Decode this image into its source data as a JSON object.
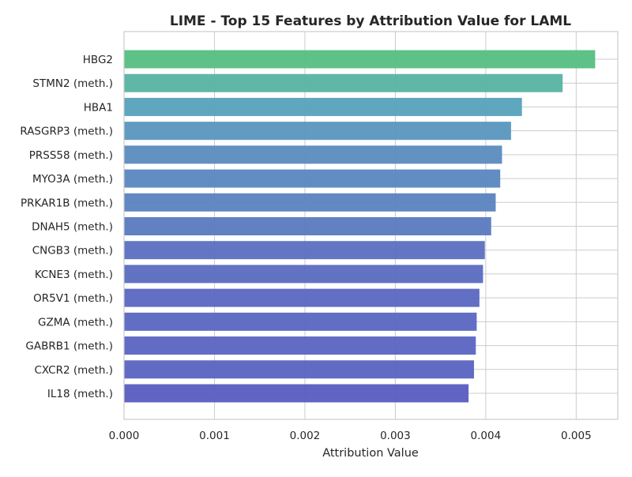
{
  "chart_data": {
    "type": "bar",
    "orientation": "horizontal",
    "title": "LIME - Top 15 Features by Attribution Value for LAML",
    "xlabel": "Attribution Value",
    "ylabel": "",
    "xlim": [
      0,
      0.00546
    ],
    "xticks": [
      0.0,
      0.001,
      0.002,
      0.003,
      0.004,
      0.005
    ],
    "xtick_labels": [
      "0.000",
      "0.001",
      "0.002",
      "0.003",
      "0.004",
      "0.005"
    ],
    "grid": true,
    "categories": [
      "HBG2",
      "STMN2 (meth.)",
      "HBA1",
      "RASGRP3 (meth.)",
      "PRSS58 (meth.)",
      "MYO3A (meth.)",
      "PRKAR1B (meth.)",
      "DNAH5 (meth.)",
      "CNGB3 (meth.)",
      "KCNE3 (meth.)",
      "OR5V1 (meth.)",
      "GZMA (meth.)",
      "GABRB1 (meth.)",
      "CXCR2 (meth.)",
      "IL18 (meth.)"
    ],
    "values": [
      0.00521,
      0.00485,
      0.0044,
      0.00428,
      0.00418,
      0.00416,
      0.00411,
      0.00406,
      0.00399,
      0.00397,
      0.00393,
      0.0039,
      0.00389,
      0.00387,
      0.00381
    ],
    "colors": [
      "#55bf82",
      "#56b3a2",
      "#56a1bc",
      "#5a96be",
      "#5a8bbf",
      "#5a87bf",
      "#5a83bf",
      "#5a7ac0",
      "#5a6fc1",
      "#5a6cc1",
      "#5a67c1",
      "#5a66c1",
      "#5a64c1",
      "#5a63c1",
      "#5a5cc0"
    ]
  }
}
